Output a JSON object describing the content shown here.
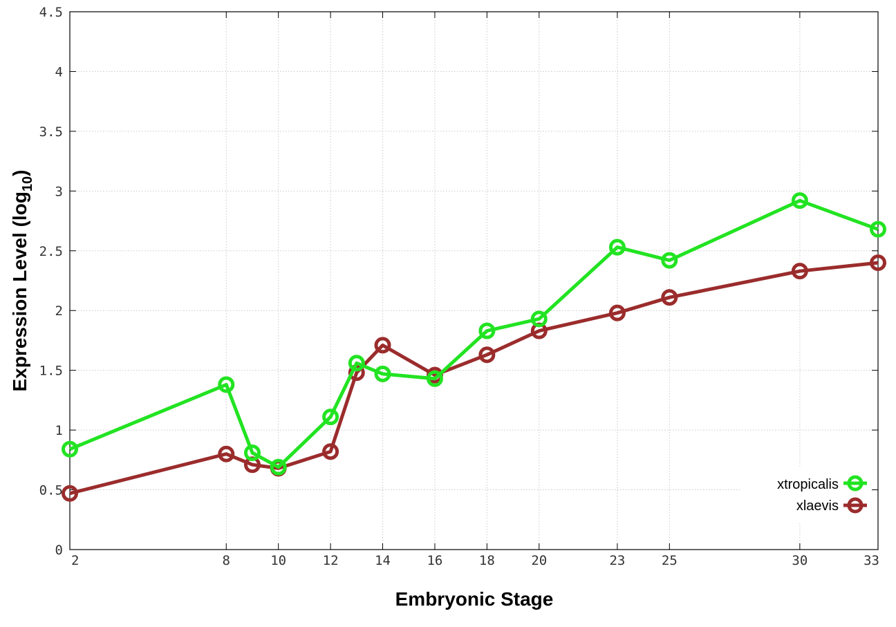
{
  "chart_data": {
    "type": "line",
    "title": "",
    "xlabel": "Embryonic Stage",
    "ylabel_main": "Expression Level (log",
    "ylabel_sub": "10",
    "ylabel_close": ")",
    "x": [
      2,
      8,
      9,
      10,
      12,
      13,
      14,
      16,
      18,
      20,
      23,
      25,
      30,
      33
    ],
    "x_ticks": [
      2,
      8,
      10,
      12,
      14,
      16,
      18,
      20,
      23,
      25,
      30,
      33
    ],
    "x_tick_labels": [
      "2",
      "8",
      "10",
      "12",
      "14",
      "16",
      "18",
      "20",
      "23",
      "25",
      "30",
      "33"
    ],
    "xlim": [
      2,
      33
    ],
    "ylim": [
      0,
      4.5
    ],
    "y_ticks": [
      0,
      0.5,
      1,
      1.5,
      2,
      2.5,
      3,
      3.5,
      4,
      4.5
    ],
    "y_tick_labels": [
      "0",
      "0.5",
      "1",
      "1.5",
      "2",
      "2.5",
      "3",
      "3.5",
      "4",
      "4.5"
    ],
    "grid": true,
    "legend_position": "bottom-right",
    "series": [
      {
        "name": "xtropicalis",
        "color": "#22e322",
        "values": [
          0.84,
          1.38,
          0.81,
          0.69,
          1.11,
          1.56,
          1.47,
          1.43,
          1.83,
          1.93,
          2.53,
          2.42,
          2.92,
          2.68
        ]
      },
      {
        "name": "xlaevis",
        "color": "#9b2c2c",
        "values": [
          0.47,
          0.8,
          0.71,
          0.68,
          0.82,
          1.48,
          1.71,
          1.46,
          1.63,
          1.83,
          1.98,
          2.11,
          2.33,
          2.4
        ]
      }
    ]
  }
}
